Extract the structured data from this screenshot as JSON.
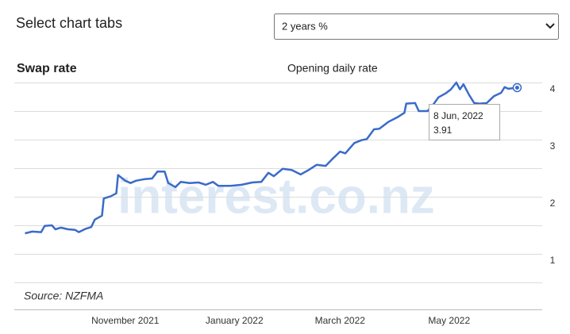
{
  "page": {
    "heading": "Select chart tabs",
    "dropdown": "2 years %"
  },
  "chart_data": {
    "type": "line",
    "title": "Swap rate",
    "subtitle": "Opening daily rate",
    "source": "Source: NZFMA",
    "watermark": "interest.co.nz",
    "color": "#3a6bc9",
    "x": [
      "2021-09-06",
      "2021-09-10",
      "2021-09-15",
      "2021-09-17",
      "2021-09-21",
      "2021-09-23",
      "2021-09-26",
      "2021-09-30",
      "2021-10-04",
      "2021-10-06",
      "2021-10-10",
      "2021-10-13",
      "2021-10-15",
      "2021-10-19",
      "2021-10-20",
      "2021-10-24",
      "2021-10-27",
      "2021-10-28",
      "2021-11-01",
      "2021-11-04",
      "2021-11-07",
      "2021-11-12",
      "2021-11-16",
      "2021-11-19",
      "2021-11-23",
      "2021-11-25",
      "2021-11-29",
      "2021-12-02",
      "2021-12-07",
      "2021-12-12",
      "2021-12-16",
      "2021-12-20",
      "2021-12-23",
      "2021-12-30",
      "2022-01-05",
      "2022-01-11",
      "2022-01-16",
      "2022-01-20",
      "2022-01-23",
      "2022-01-28",
      "2022-02-02",
      "2022-02-07",
      "2022-02-11",
      "2022-02-16",
      "2022-02-21",
      "2022-02-25",
      "2022-03-01",
      "2022-03-04",
      "2022-03-09",
      "2022-03-13",
      "2022-03-16",
      "2022-03-20",
      "2022-03-23",
      "2022-03-28",
      "2022-04-02",
      "2022-04-06",
      "2022-04-07",
      "2022-04-12",
      "2022-04-14",
      "2022-04-19",
      "2022-04-22",
      "2022-04-25",
      "2022-04-29",
      "2022-05-02",
      "2022-05-05",
      "2022-05-07",
      "2022-05-09",
      "2022-05-12",
      "2022-05-15",
      "2022-05-18",
      "2022-05-22",
      "2022-05-26",
      "2022-05-30",
      "2022-06-01",
      "2022-06-03",
      "2022-06-08"
    ],
    "values": [
      1.36,
      1.39,
      1.38,
      1.49,
      1.5,
      1.43,
      1.46,
      1.43,
      1.42,
      1.38,
      1.44,
      1.47,
      1.6,
      1.67,
      1.97,
      2.01,
      2.06,
      2.38,
      2.28,
      2.24,
      2.28,
      2.31,
      2.32,
      2.44,
      2.44,
      2.24,
      2.17,
      2.26,
      2.24,
      2.25,
      2.21,
      2.26,
      2.19,
      2.19,
      2.21,
      2.25,
      2.26,
      2.42,
      2.36,
      2.49,
      2.47,
      2.39,
      2.46,
      2.56,
      2.54,
      2.67,
      2.79,
      2.76,
      2.94,
      2.99,
      3.01,
      3.18,
      3.19,
      3.31,
      3.39,
      3.47,
      3.63,
      3.64,
      3.5,
      3.5,
      3.61,
      3.74,
      3.81,
      3.88,
      4.0,
      3.88,
      3.97,
      3.79,
      3.64,
      3.63,
      3.64,
      3.76,
      3.82,
      3.92,
      3.89,
      3.91
    ],
    "xlim": [
      "2021-08-31",
      "2022-06-22"
    ],
    "xticks": [
      {
        "value": "2021-11-01",
        "label": "November 2021"
      },
      {
        "value": "2022-01-01",
        "label": "January 2022"
      },
      {
        "value": "2022-03-01",
        "label": "March 2022"
      },
      {
        "value": "2022-05-01",
        "label": "May 2022"
      }
    ],
    "ylim": [
      0,
      4
    ],
    "yticks": [
      1,
      2,
      3,
      4
    ],
    "grid_lines": [
      0.5,
      1,
      1.5,
      2,
      2.5,
      3,
      3.5,
      4
    ],
    "tooltip": {
      "label": "8 Jun, 2022",
      "value": 3.91
    }
  }
}
